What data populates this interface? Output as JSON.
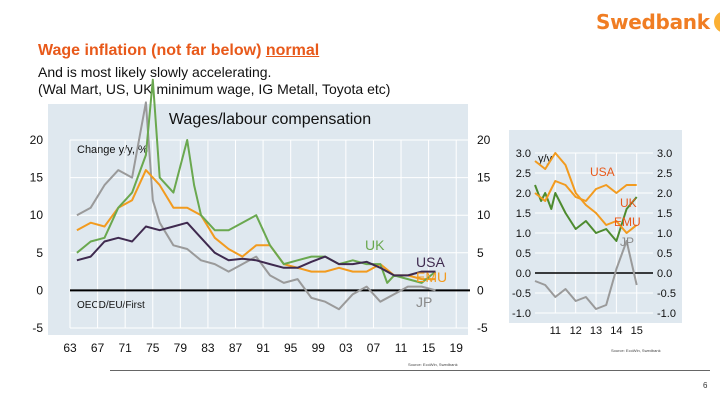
{
  "header": {
    "brand": "Swedbank",
    "title_part1": "Wage inflation (not far below) ",
    "title_part2": "normal",
    "subtitle_line1": "And is most likely slowly accelerating.",
    "subtitle_line2": "(Wal Mart, US, UK minimum wage, IG Metall, Toyota etc)"
  },
  "colors": {
    "brand": "#f07d23",
    "title": "#e8591a",
    "usa": "#f29b1f",
    "uk": "#4d8b2e",
    "emu": "#f29b1f",
    "jp": "#9a9a9a",
    "us_main": "#3f2a4f",
    "uk_main": "#6aa84f"
  },
  "footer": {
    "source_main": "Source: EcoWin, Swedbank",
    "source_small": "Source: EcoWin, Swedbank",
    "page_number": "6"
  },
  "chart_data": [
    {
      "type": "line",
      "title": "Wages/labour compensation",
      "ylabel": "Change y/y, %",
      "source_note": "OECD/EU/First",
      "x_ticks": [
        "63",
        "67",
        "71",
        "75",
        "79",
        "83",
        "87",
        "91",
        "95",
        "99",
        "03",
        "07",
        "11",
        "15",
        "19"
      ],
      "y_ticks": [
        "20",
        "15",
        "10",
        "5",
        "0",
        "-5"
      ],
      "xlim": [
        1963,
        2021
      ],
      "ylim": [
        -5,
        20
      ],
      "series": [
        {
          "name": "USA",
          "label": "USA",
          "x": [
            1964,
            1966,
            1968,
            1970,
            1972,
            1974,
            1976,
            1978,
            1980,
            1982,
            1984,
            1986,
            1988,
            1990,
            1992,
            1994,
            1996,
            1998,
            2000,
            2002,
            2004,
            2006,
            2008,
            2010,
            2012,
            2014,
            2016
          ],
          "values": [
            4.0,
            4.5,
            6.5,
            7.0,
            6.5,
            8.5,
            8.0,
            8.5,
            9.0,
            7.0,
            5.0,
            4.0,
            4.2,
            4.0,
            3.5,
            3.0,
            3.0,
            3.8,
            4.5,
            3.5,
            3.5,
            3.8,
            3.0,
            2.0,
            2.0,
            2.5,
            2.5
          ]
        },
        {
          "name": "UK",
          "label": "UK",
          "x": [
            1964,
            1966,
            1968,
            1970,
            1972,
            1974,
            1975,
            1976,
            1978,
            1980,
            1981,
            1982,
            1984,
            1986,
            1988,
            1990,
            1992,
            1994,
            1996,
            1998,
            2000,
            2002,
            2004,
            2006,
            2008,
            2009,
            2010,
            2012,
            2014,
            2016
          ],
          "values": [
            5.0,
            6.5,
            7.0,
            11.0,
            13.0,
            18.0,
            28.0,
            15.0,
            13.0,
            20.0,
            14.0,
            10.0,
            8.0,
            8.0,
            9.0,
            10.0,
            6.0,
            3.5,
            4.0,
            4.5,
            4.5,
            3.5,
            4.0,
            3.5,
            3.5,
            1.0,
            2.0,
            1.5,
            1.0,
            2.5
          ]
        },
        {
          "name": "EMU",
          "label": "EMU",
          "x": [
            1964,
            1966,
            1968,
            1970,
            1972,
            1974,
            1976,
            1978,
            1980,
            1982,
            1984,
            1986,
            1988,
            1990,
            1992,
            1994,
            1996,
            1998,
            2000,
            2002,
            2004,
            2006,
            2008,
            2010,
            2012,
            2014,
            2016
          ],
          "values": [
            8.0,
            9.0,
            8.5,
            11.0,
            12.0,
            16.0,
            14.0,
            11.0,
            11.0,
            10.0,
            7.0,
            5.5,
            4.5,
            6.0,
            6.0,
            3.5,
            3.0,
            2.5,
            2.5,
            3.0,
            2.5,
            2.5,
            3.5,
            2.0,
            2.0,
            1.5,
            1.5
          ]
        },
        {
          "name": "JP",
          "label": "JP",
          "x": [
            1964,
            1966,
            1968,
            1970,
            1972,
            1974,
            1975,
            1976,
            1978,
            1980,
            1982,
            1984,
            1986,
            1988,
            1990,
            1992,
            1994,
            1996,
            1998,
            2000,
            2002,
            2004,
            2006,
            2008,
            2010,
            2012,
            2014,
            2016
          ],
          "values": [
            10.0,
            11.0,
            14.0,
            16.0,
            15.0,
            25.0,
            12.0,
            9.0,
            6.0,
            5.5,
            4.0,
            3.5,
            2.5,
            3.5,
            4.5,
            2.0,
            1.0,
            1.5,
            -1.0,
            -1.5,
            -2.5,
            -0.5,
            0.5,
            -1.5,
            -0.5,
            0.5,
            0.5,
            0.0
          ]
        }
      ]
    },
    {
      "type": "line",
      "ylabel": "y/y",
      "x_ticks": [
        "11",
        "12",
        "13",
        "14",
        "15"
      ],
      "y_ticks": [
        "3.0",
        "2.5",
        "2.0",
        "1.5",
        "1.0",
        "0.5",
        "0.0",
        "-0.5",
        "-1.0"
      ],
      "xlim": [
        2010.0,
        2015.8
      ],
      "ylim": [
        -1.0,
        3.0
      ],
      "series": [
        {
          "name": "USA",
          "label": "USA",
          "x": [
            2010.0,
            2010.5,
            2011.0,
            2011.5,
            2012.0,
            2012.5,
            2013.0,
            2013.5,
            2014.0,
            2014.5,
            2015.0
          ],
          "values": [
            2.0,
            1.8,
            2.3,
            2.2,
            1.9,
            1.8,
            2.1,
            2.2,
            2.0,
            2.2,
            2.2
          ]
        },
        {
          "name": "UK",
          "label": "UK",
          "x": [
            2010.0,
            2010.3,
            2010.5,
            2010.8,
            2011.0,
            2011.5,
            2012.0,
            2012.5,
            2013.0,
            2013.5,
            2014.0,
            2014.5,
            2015.0
          ],
          "values": [
            2.2,
            1.8,
            2.0,
            1.6,
            2.0,
            1.5,
            1.1,
            1.3,
            1.0,
            1.1,
            0.8,
            1.6,
            1.9
          ]
        },
        {
          "name": "EMU",
          "label": "EMU",
          "x": [
            2010.0,
            2010.5,
            2011.0,
            2011.5,
            2012.0,
            2012.5,
            2013.0,
            2013.5,
            2014.0,
            2014.5,
            2015.0
          ],
          "values": [
            2.8,
            2.6,
            3.0,
            2.7,
            2.0,
            1.7,
            1.5,
            1.2,
            1.3,
            1.0,
            1.2
          ]
        },
        {
          "name": "JP",
          "label": "JP",
          "x": [
            2010.0,
            2010.5,
            2011.0,
            2011.5,
            2012.0,
            2012.5,
            2013.0,
            2013.5,
            2014.0,
            2014.5,
            2015.0
          ],
          "values": [
            -0.2,
            -0.3,
            -0.6,
            -0.4,
            -0.7,
            -0.6,
            -0.9,
            -0.8,
            0.1,
            0.8,
            -0.3
          ]
        }
      ]
    }
  ]
}
